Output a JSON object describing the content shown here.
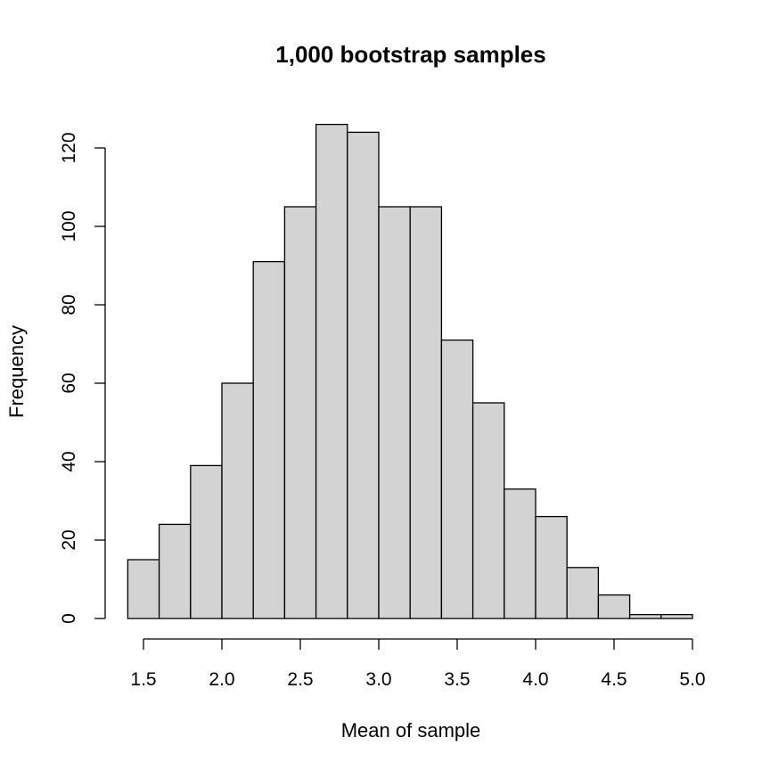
{
  "chart_data": {
    "type": "histogram",
    "title": "1,000 bootstrap samples",
    "xlabel": "Mean of sample",
    "ylabel": "Frequency",
    "bin_edges": [
      1.4,
      1.6,
      1.8,
      2.0,
      2.2,
      2.4,
      2.6,
      2.8,
      3.0,
      3.2,
      3.4,
      3.6,
      3.8,
      4.0,
      4.2,
      4.4,
      4.6,
      4.8,
      5.0
    ],
    "counts": [
      15,
      24,
      39,
      60,
      91,
      105,
      126,
      124,
      105,
      105,
      71,
      55,
      33,
      26,
      13,
      6,
      1,
      1
    ],
    "xlim": [
      1.5,
      5.0
    ],
    "ylim": [
      0,
      120
    ],
    "x_ticks": [
      1.5,
      2.0,
      2.5,
      3.0,
      3.5,
      4.0,
      4.5,
      5.0
    ],
    "x_tick_labels": [
      "1.5",
      "2.0",
      "2.5",
      "3.0",
      "3.5",
      "4.0",
      "4.5",
      "5.0"
    ],
    "y_ticks": [
      0,
      20,
      40,
      60,
      80,
      100,
      120
    ],
    "y_tick_labels": [
      "0",
      "20",
      "40",
      "60",
      "80",
      "100",
      "120"
    ],
    "bar_fill": "#d3d3d3",
    "bar_stroke": "#000000",
    "grid": false,
    "legend": "none"
  }
}
